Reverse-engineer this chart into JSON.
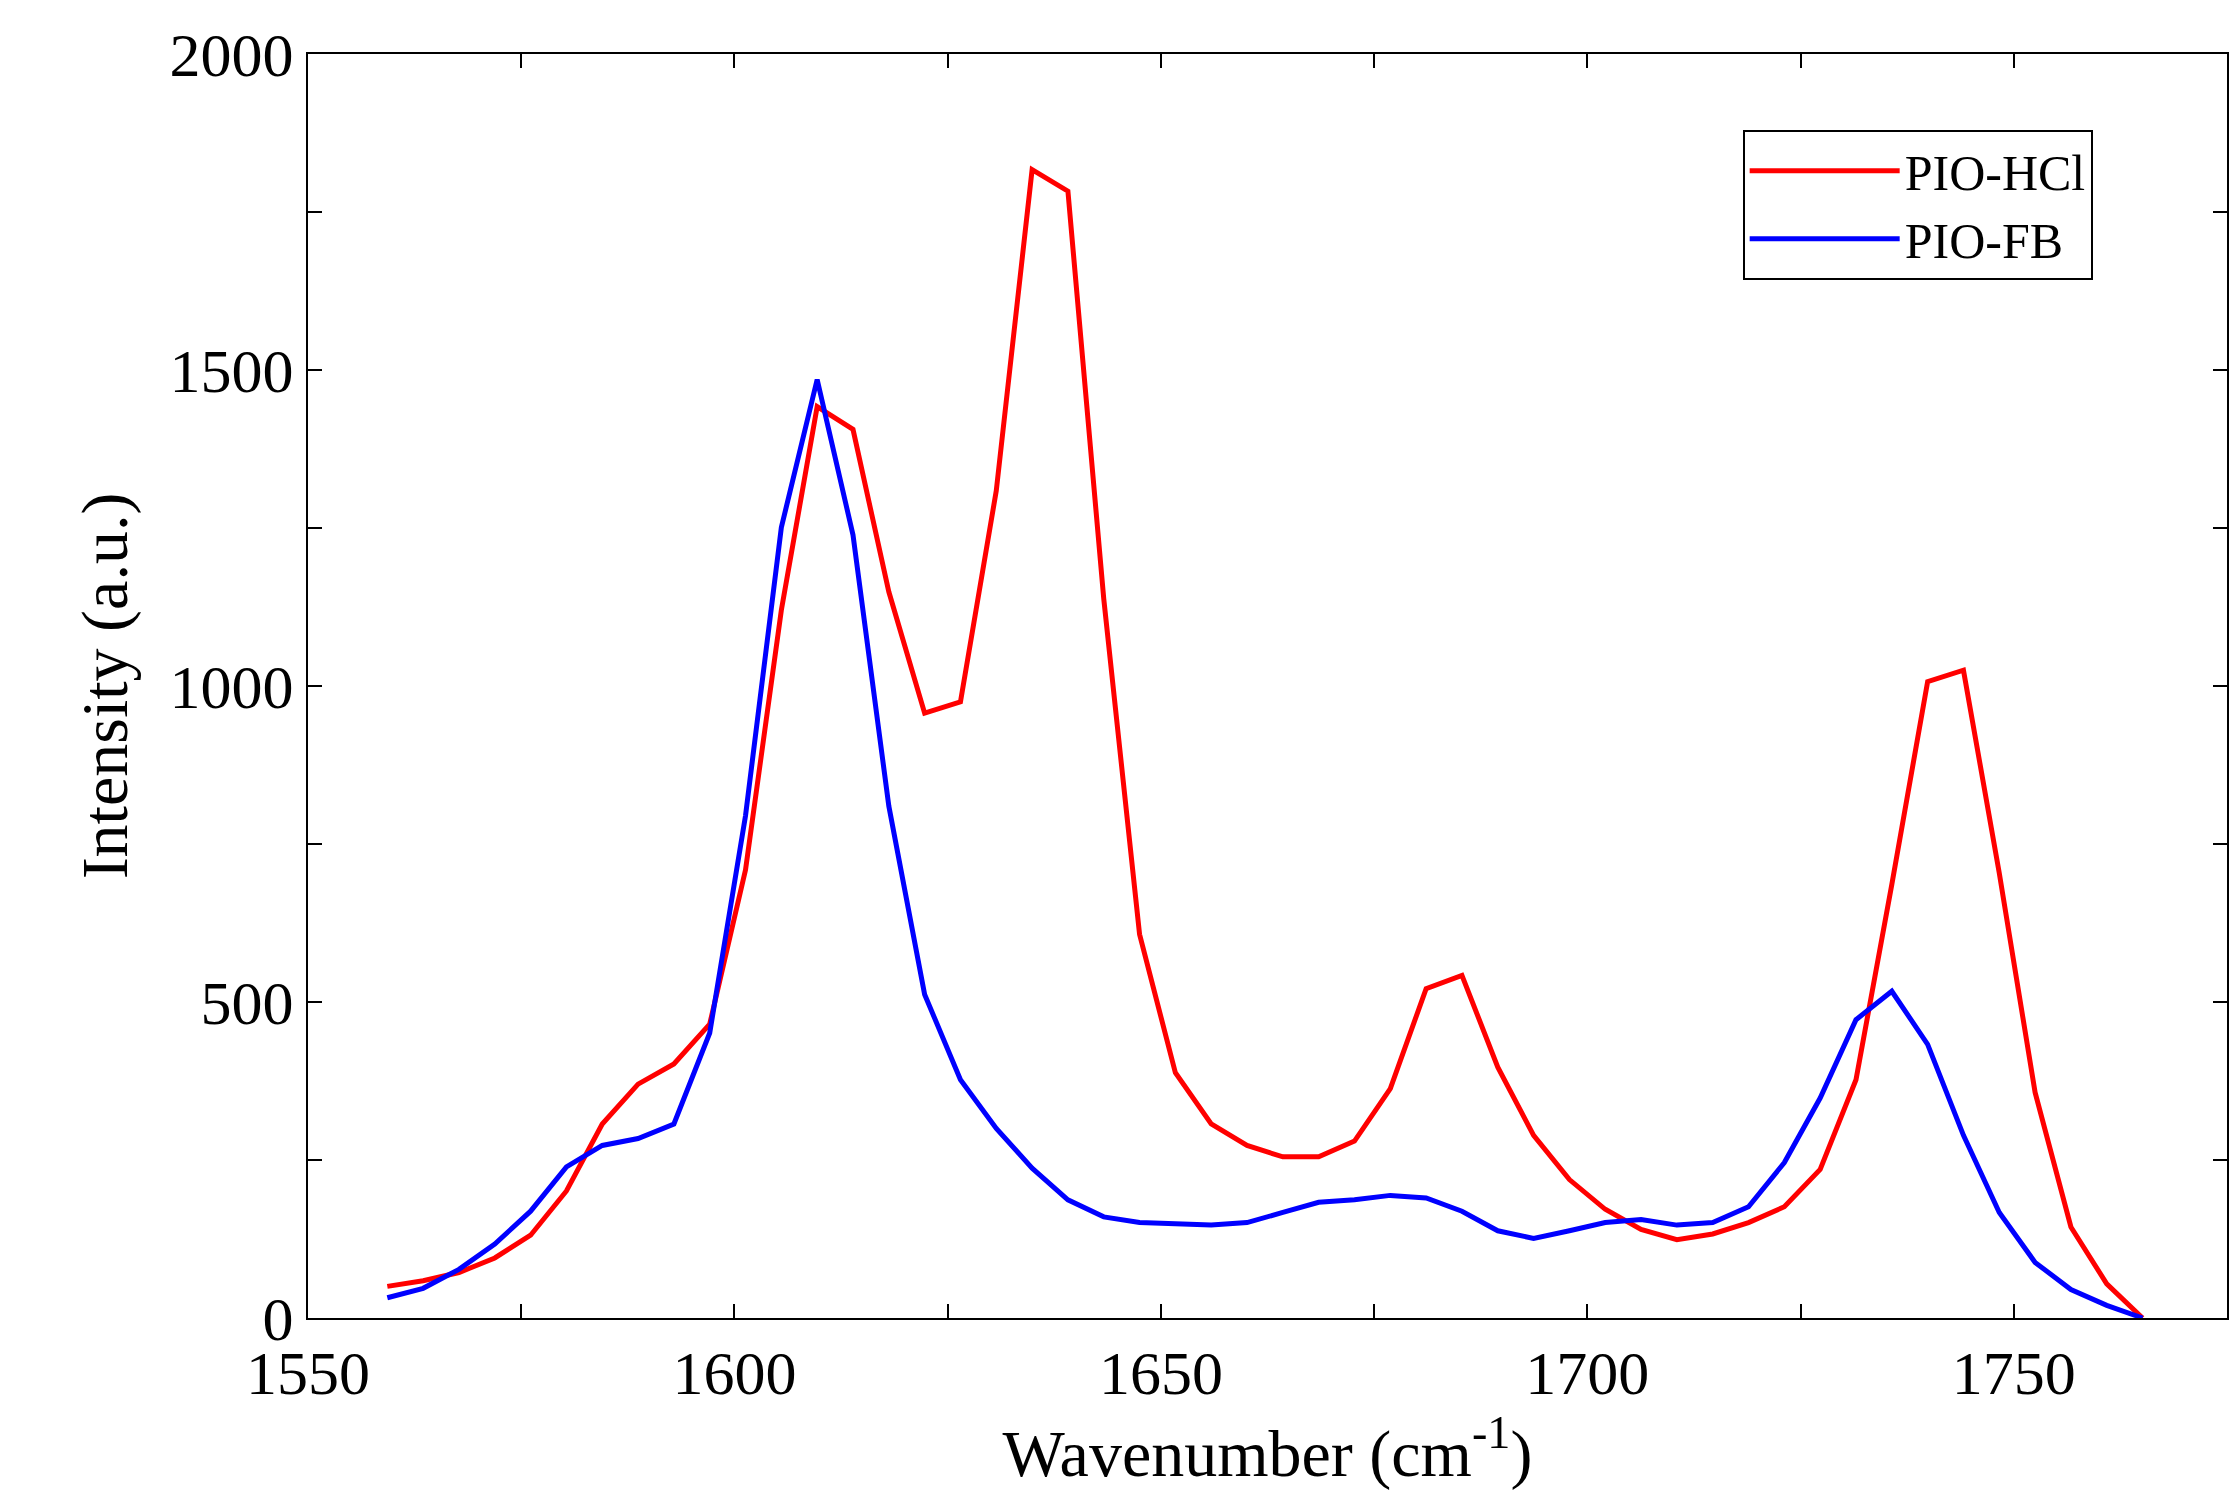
{
  "chart_data": {
    "type": "line",
    "xlabel": "Wavenumber (cm$^{-1}$)",
    "ylabel": "Intensity (a.u.)",
    "x": [
      1559.3,
      1563.5,
      1567.7,
      1571.9,
      1576.1,
      1580.3,
      1584.5,
      1588.7,
      1592.9,
      1597.1,
      1601.3,
      1605.5,
      1609.7,
      1613.9,
      1618.1,
      1622.3,
      1626.5,
      1630.7,
      1634.9,
      1639.1,
      1643.3,
      1647.5,
      1651.7,
      1655.9,
      1660.1,
      1664.3,
      1668.5,
      1672.7,
      1676.9,
      1681.1,
      1685.3,
      1689.5,
      1693.7,
      1697.9,
      1702.1,
      1706.3,
      1710.5,
      1714.7,
      1718.9,
      1723.1,
      1727.3,
      1731.5,
      1735.7,
      1739.9,
      1744.1,
      1748.3,
      1752.5,
      1756.7,
      1760.9,
      1765.1
    ],
    "series": [
      {
        "name": "PIO-HCl",
        "color": "#ff0000",
        "values": [
          50,
          59,
          72,
          95,
          131,
          201,
          307,
          370,
          402,
          465,
          709,
          1120,
          1442,
          1406,
          1149,
          957,
          975,
          1309,
          1817,
          1783,
          1138,
          607,
          388,
          307,
          273,
          255,
          255,
          280,
          363,
          521,
          542,
          397,
          289,
          219,
          172,
          140,
          124,
          133,
          151,
          176,
          235,
          377,
          686,
          1007,
          1025,
          704,
          357,
          144,
          54,
          0
        ]
      },
      {
        "name": "PIO-FB",
        "color": "#0000ff",
        "values": [
          32,
          47,
          77,
          117,
          169,
          239,
          273,
          284,
          307,
          451,
          795,
          1251,
          1485,
          1239,
          810,
          512,
          377,
          300,
          237,
          187,
          160,
          151,
          149,
          147,
          151,
          167,
          183,
          187,
          194,
          190,
          169,
          138,
          126,
          138,
          151,
          156,
          147,
          151,
          176,
          246,
          348,
          472,
          517,
          433,
          289,
          167,
          88,
          45,
          20,
          0
        ]
      }
    ],
    "xlim": [
      1550,
      1775
    ],
    "ylim": [
      0,
      2000
    ],
    "xticks": [
      1550,
      {
        "value": 1575,
        "label": null
      },
      1600,
      {
        "value": 1625,
        "label": null
      },
      1650,
      {
        "value": 1675,
        "label": null
      },
      1700,
      {
        "value": 1725,
        "label": null
      },
      1750
    ],
    "yticks": [
      0,
      {
        "value": 250,
        "label": null
      },
      500,
      {
        "value": 750,
        "label": null
      },
      1000,
      {
        "value": 1250,
        "label": null
      },
      1500,
      {
        "value": 1750,
        "label": null
      },
      2000
    ],
    "legend": "top right",
    "marker": "none",
    "line_style": "solid"
  }
}
